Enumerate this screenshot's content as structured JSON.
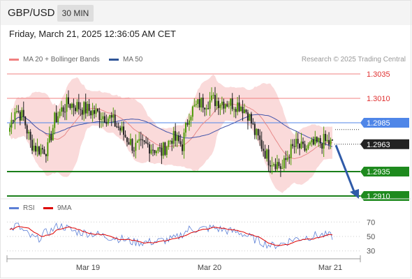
{
  "header": {
    "symbol": "GBP/USD",
    "interval": "30 MIN"
  },
  "timestamp": "Friday, March 21, 2025 12:36:05 AM CET",
  "legend": {
    "ma20": {
      "label": "MA 20 + Bollinger Bands",
      "color": "#f08080"
    },
    "ma50": {
      "label": "MA 50",
      "color": "#2f5597"
    }
  },
  "credit": "Research © 2025 Trading Central",
  "rsi_legend": {
    "rsi": {
      "label": "RSI",
      "color": "#5b7fd6"
    },
    "ma9": {
      "label": "9MA",
      "color": "#dd0000"
    }
  },
  "chart_data": [
    {
      "type": "candlestick",
      "symbol": "GBP/USD",
      "interval": "30 MIN",
      "x_ticks": [
        "Mar 19",
        "Mar 20",
        "Mar 21"
      ],
      "ylim": [
        1.2905,
        1.3045
      ],
      "levels": [
        {
          "label": "1.3035",
          "value": 1.3035,
          "kind": "resistance"
        },
        {
          "label": "1.3010",
          "value": 1.301,
          "kind": "resistance"
        },
        {
          "label": "1.2985",
          "value": 1.2985,
          "kind": "pivot"
        },
        {
          "label": "1.2935",
          "value": 1.2935,
          "kind": "support"
        },
        {
          "label": "1.2910",
          "value": 1.291,
          "kind": "support"
        }
      ],
      "last_price": {
        "label": "1.2963",
        "value": 1.2963
      },
      "forecast": {
        "from": 1.2962,
        "to": 1.291,
        "direction": "down"
      },
      "colors": {
        "up": "#4e9a06",
        "down": "#222222",
        "band": "#f9d4d4",
        "ma20": "#e88b8b",
        "ma50": "#4455aa",
        "resistance": "#f08080",
        "pivot": "#4f86e8",
        "support": "#1a7f1a",
        "arrow": "#2f5aa8"
      },
      "anchors": [
        [
          0,
          1.298
        ],
        [
          3,
          1.3
        ],
        [
          8,
          1.299
        ],
        [
          12,
          1.2965
        ],
        [
          16,
          1.2958
        ],
        [
          22,
          1.2958
        ],
        [
          26,
          1.2988
        ],
        [
          30,
          1.2998
        ],
        [
          34,
          1.3005
        ],
        [
          42,
          1.3
        ],
        [
          50,
          1.2995
        ],
        [
          58,
          1.299
        ],
        [
          64,
          1.2978
        ],
        [
          72,
          1.296
        ],
        [
          80,
          1.2962
        ],
        [
          88,
          1.2955
        ],
        [
          94,
          1.297
        ],
        [
          100,
          1.2962
        ],
        [
          104,
          1.2995
        ],
        [
          110,
          1.3005
        ],
        [
          118,
          1.3008
        ],
        [
          126,
          1.3006
        ],
        [
          134,
          1.3003
        ],
        [
          138,
          1.2995
        ],
        [
          142,
          1.2975
        ],
        [
          146,
          1.2962
        ],
        [
          150,
          1.2948
        ],
        [
          154,
          1.2945
        ],
        [
          158,
          1.2938
        ],
        [
          162,
          1.2955
        ],
        [
          166,
          1.2962
        ],
        [
          170,
          1.2957
        ],
        [
          176,
          1.2962
        ],
        [
          182,
          1.2966
        ],
        [
          187,
          1.2963
        ]
      ],
      "n_candles": 188
    },
    {
      "type": "line",
      "indicator": "RSI",
      "ylim": [
        22,
        78
      ],
      "y_ticks": [
        "70",
        "50",
        "30"
      ],
      "series": [
        {
          "name": "RSI",
          "color": "#5b7fd6"
        },
        {
          "name": "9MA",
          "color": "#dd0000"
        }
      ],
      "anchors": [
        [
          0,
          58
        ],
        [
          4,
          66
        ],
        [
          8,
          57
        ],
        [
          12,
          50
        ],
        [
          16,
          46
        ],
        [
          20,
          54
        ],
        [
          24,
          58
        ],
        [
          28,
          65
        ],
        [
          32,
          63
        ],
        [
          36,
          58
        ],
        [
          40,
          56
        ],
        [
          48,
          54
        ],
        [
          56,
          50
        ],
        [
          64,
          47
        ],
        [
          72,
          42
        ],
        [
          80,
          42
        ],
        [
          88,
          44
        ],
        [
          96,
          47
        ],
        [
          104,
          60
        ],
        [
          110,
          60
        ],
        [
          118,
          62
        ],
        [
          126,
          58
        ],
        [
          134,
          55
        ],
        [
          140,
          48
        ],
        [
          146,
          42
        ],
        [
          152,
          37
        ],
        [
          158,
          40
        ],
        [
          164,
          46
        ],
        [
          170,
          48
        ],
        [
          176,
          51
        ],
        [
          182,
          52
        ],
        [
          187,
          50
        ]
      ]
    }
  ]
}
